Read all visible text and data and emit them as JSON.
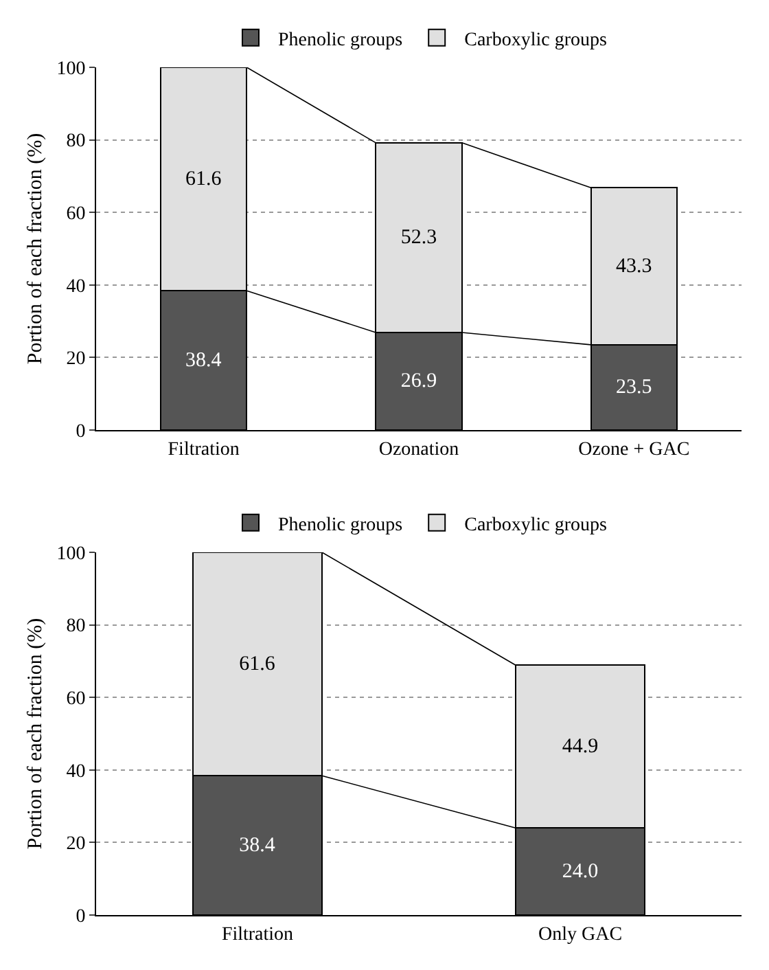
{
  "chart_data": [
    {
      "type": "bar",
      "stacked": true,
      "ylabel": "Portion of each fraction (%)",
      "categories": [
        "Filtration",
        "Ozonation",
        "Ozone + GAC"
      ],
      "series": [
        {
          "name": "Phenolic groups",
          "color": "#555555",
          "values": [
            38.4,
            26.9,
            23.5
          ],
          "value_labels": [
            "38.4",
            "26.9",
            "23.5"
          ]
        },
        {
          "name": "Carboxylic groups",
          "color": "#e0e0e0",
          "values": [
            61.6,
            52.3,
            43.3
          ],
          "value_labels": [
            "61.6",
            "52.3",
            "43.3"
          ]
        }
      ],
      "ylim": [
        0,
        100
      ],
      "yticks": [
        0,
        20,
        40,
        60,
        80,
        100
      ],
      "grid": "y",
      "legend": "top"
    },
    {
      "type": "bar",
      "stacked": true,
      "ylabel": "Portion of each fraction (%)",
      "categories": [
        "Filtration",
        "Only GAC"
      ],
      "series": [
        {
          "name": "Phenolic groups",
          "color": "#555555",
          "values": [
            38.4,
            24.0
          ],
          "value_labels": [
            "38.4",
            "24.0"
          ]
        },
        {
          "name": "Carboxylic groups",
          "color": "#e0e0e0",
          "values": [
            61.6,
            44.9
          ],
          "value_labels": [
            "61.6",
            "44.9"
          ]
        }
      ],
      "ylim": [
        0,
        100
      ],
      "yticks": [
        0,
        20,
        40,
        60,
        80,
        100
      ],
      "grid": "y",
      "legend": "top"
    }
  ]
}
